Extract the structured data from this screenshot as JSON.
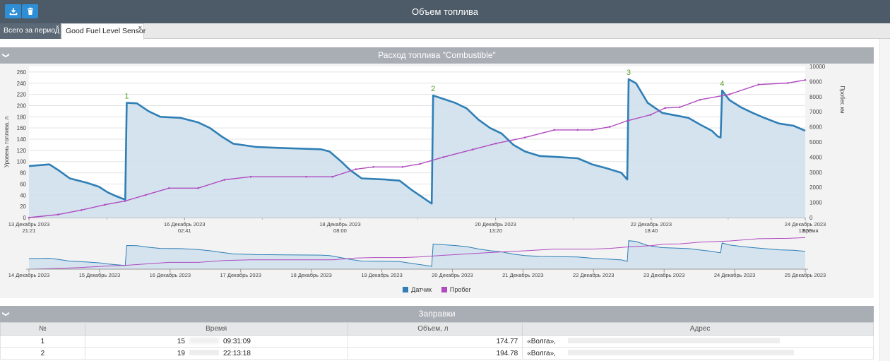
{
  "window": {
    "title": "Объем топлива"
  },
  "toolbar": {
    "download_icon": "download-icon",
    "delete_icon": "trash-icon"
  },
  "tabs": [
    {
      "label": "Всего за период",
      "close": "×"
    },
    {
      "label": "Good Fuel Level Sensor",
      "close": "×"
    }
  ],
  "chart_section": {
    "title": "Расход топлива \"Combustible\"",
    "collapse": "❯"
  },
  "chart_data": {
    "type": "line",
    "title": "",
    "ylabel": "Уровень топлива, л",
    "y2label": "Пробег, км",
    "xlabel": "Время",
    "ylim": [
      0,
      270
    ],
    "y2lim": [
      0,
      10000
    ],
    "yticks": [
      0,
      20,
      40,
      60,
      80,
      100,
      120,
      140,
      160,
      180,
      200,
      220,
      240,
      260
    ],
    "y2ticks": [
      0,
      1000,
      2000,
      3000,
      4000,
      5000,
      6000,
      7000,
      8000,
      9000,
      10000
    ],
    "xticks": [
      [
        "13 Декабрь 2023",
        "21:21"
      ],
      [
        "16 Декабрь 2023",
        "02:41"
      ],
      [
        "18 Декабрь 2023",
        "08:00"
      ],
      [
        "20 Декабрь 2023",
        "13:20"
      ],
      [
        "22 Декабрь 2023",
        "18:40"
      ],
      [
        "24 Декабрь 2023",
        "13:59"
      ]
    ],
    "x_hours_range": [
      0,
      232.6
    ],
    "series": [
      {
        "name": "Датчик",
        "color": "#2f7fb6",
        "points": [
          [
            0,
            92
          ],
          [
            7,
            95
          ],
          [
            10,
            85
          ],
          [
            14,
            70
          ],
          [
            20,
            62
          ],
          [
            24,
            55
          ],
          [
            27,
            45
          ],
          [
            30,
            38
          ],
          [
            33,
            32
          ],
          [
            33.5,
            205
          ],
          [
            37,
            204
          ],
          [
            41,
            190
          ],
          [
            45,
            180
          ],
          [
            52,
            178
          ],
          [
            58,
            170
          ],
          [
            62,
            160
          ],
          [
            66,
            145
          ],
          [
            70,
            132
          ],
          [
            78,
            126
          ],
          [
            88,
            124
          ],
          [
            100,
            122
          ],
          [
            103,
            118
          ],
          [
            107,
            100
          ],
          [
            110,
            85
          ],
          [
            114,
            70
          ],
          [
            122,
            68
          ],
          [
            127,
            66
          ],
          [
            131,
            50
          ],
          [
            136,
            32
          ],
          [
            138,
            25
          ],
          [
            138.5,
            218
          ],
          [
            142,
            212
          ],
          [
            146,
            205
          ],
          [
            150,
            195
          ],
          [
            154,
            175
          ],
          [
            158,
            160
          ],
          [
            162,
            150
          ],
          [
            166,
            130
          ],
          [
            170,
            118
          ],
          [
            175,
            110
          ],
          [
            182,
            108
          ],
          [
            188,
            106
          ],
          [
            193,
            95
          ],
          [
            198,
            88
          ],
          [
            203,
            80
          ],
          [
            205,
            68
          ],
          [
            205.5,
            247
          ],
          [
            208,
            240
          ],
          [
            212,
            205
          ],
          [
            217,
            187
          ],
          [
            222,
            182
          ],
          [
            226,
            178
          ],
          [
            230,
            166
          ],
          [
            234,
            155
          ],
          [
            236,
            145
          ],
          [
            237,
            143
          ],
          [
            237.5,
            227
          ],
          [
            240,
            210
          ],
          [
            244,
            197
          ],
          [
            248,
            187
          ],
          [
            252,
            178
          ],
          [
            257,
            168
          ],
          [
            262,
            164
          ],
          [
            266,
            155
          ]
        ]
      },
      {
        "name": "Пробег",
        "color": "#b04bc0",
        "points": [
          [
            0,
            0
          ],
          [
            10,
            200
          ],
          [
            18,
            500
          ],
          [
            26,
            850
          ],
          [
            33,
            1100
          ],
          [
            40,
            1500
          ],
          [
            48,
            1950
          ],
          [
            58,
            1950
          ],
          [
            67,
            2500
          ],
          [
            76,
            2700
          ],
          [
            95,
            2700
          ],
          [
            104,
            2700
          ],
          [
            112,
            3200
          ],
          [
            118,
            3350
          ],
          [
            128,
            3350
          ],
          [
            134,
            3550
          ],
          [
            142,
            4000
          ],
          [
            152,
            4500
          ],
          [
            160,
            4900
          ],
          [
            170,
            5300
          ],
          [
            180,
            5800
          ],
          [
            188,
            5800
          ],
          [
            193,
            5800
          ],
          [
            199,
            6000
          ],
          [
            205,
            6400
          ],
          [
            213,
            6800
          ],
          [
            218,
            7250
          ],
          [
            223,
            7300
          ],
          [
            230,
            7800
          ],
          [
            240,
            8150
          ],
          [
            250,
            8800
          ],
          [
            260,
            8900
          ],
          [
            266,
            9100
          ]
        ]
      }
    ],
    "annotations": [
      {
        "label": "1",
        "x": 33.5,
        "y": 205
      },
      {
        "label": "2",
        "x": 138.5,
        "y": 218
      },
      {
        "label": "3",
        "x": 205.5,
        "y": 247
      },
      {
        "label": "4",
        "x": 237.5,
        "y": 227
      }
    ],
    "navigator_xticks": [
      "14 Декабрь 2023",
      "15 Декабрь 2023",
      "16 Декабрь 2023",
      "17 Декабрь 2023",
      "18 Декабрь 2023",
      "19 Декабрь 2023",
      "20 Декабрь 2023",
      "21 Декабрь 2023",
      "22 Декабрь 2023",
      "23 Декабрь 2023",
      "24 Декабрь 2023",
      "25 Декабрь 2023"
    ],
    "legend": [
      {
        "name": "Датчик",
        "color": "#2f7fb6"
      },
      {
        "name": "Пробег",
        "color": "#b04bc0"
      }
    ]
  },
  "refuel_section": {
    "title": "Заправки",
    "collapse": "❯",
    "columns": [
      "№",
      "Время",
      "Объем, л",
      "Адрес"
    ],
    "rows": [
      {
        "no": "1",
        "day": "15",
        "time": "09:31:09",
        "volume": "174.77",
        "address": "«Волга»,"
      },
      {
        "no": "2",
        "day": "19",
        "time": "22:13:18",
        "volume": "194.78",
        "address": "«Волга»,"
      }
    ]
  }
}
